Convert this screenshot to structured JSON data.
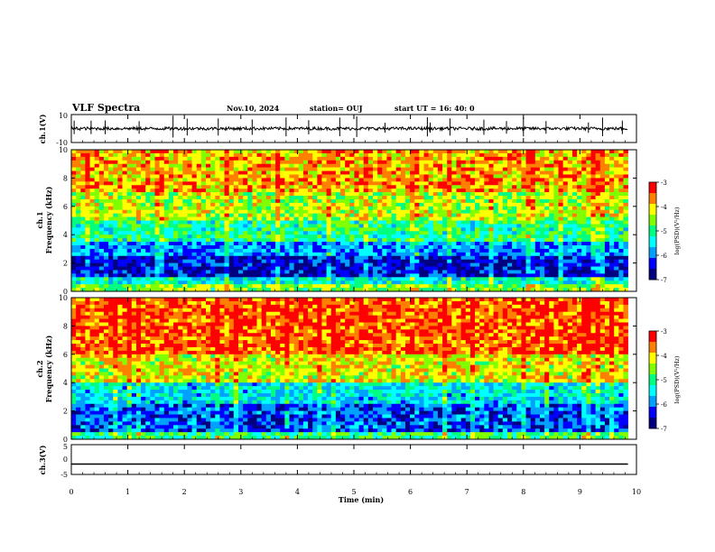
{
  "header": {
    "title": "VLF Spectra",
    "date": "Nov.10, 2024",
    "station": "station= OUJ",
    "start_ut": "start  UT =   16: 40: 0"
  },
  "chart_data": [
    {
      "type": "line",
      "panel": "ch1_waveform",
      "ylabel": "ch.1(V)",
      "ylim": [
        -10,
        10
      ],
      "yticks": [
        "10",
        "-10"
      ],
      "baseline": 0,
      "spikes_at_min": [
        0.05,
        0.35,
        0.6,
        1.2,
        1.8,
        2.05,
        2.6,
        3.2,
        3.8,
        4.2,
        4.75,
        5.05,
        5.55,
        6.3,
        6.35,
        6.7,
        7.3,
        7.7,
        8.0,
        8.4,
        9.15,
        9.4,
        9.75
      ]
    },
    {
      "type": "heatmap",
      "panel": "ch1_spectrogram",
      "ylabel": "ch.1\nFrequency (kHz)",
      "ylim": [
        0,
        10
      ],
      "yticks": [
        "0",
        "2",
        "4",
        "6",
        "8",
        "10"
      ],
      "xlim_min": [
        0,
        9.85
      ],
      "colorbar": {
        "label": "log(PSD)(V²/Hz)",
        "range": [
          -7,
          -3
        ],
        "ticks": [
          "-3",
          "-4",
          "-5",
          "-6",
          "-7"
        ]
      },
      "bands": [
        {
          "f_from": 0,
          "f_to": 0.4,
          "level": -4.6
        },
        {
          "f_from": 0.4,
          "f_to": 1.0,
          "level": -5.4
        },
        {
          "f_from": 1.0,
          "f_to": 2.4,
          "level": -6.5
        },
        {
          "f_from": 2.4,
          "f_to": 3.6,
          "level": -5.9
        },
        {
          "f_from": 3.6,
          "f_to": 5.0,
          "level": -5.1
        },
        {
          "f_from": 5.0,
          "f_to": 7.0,
          "level": -4.4
        },
        {
          "f_from": 7.0,
          "f_to": 10.0,
          "level": -3.9
        }
      ]
    },
    {
      "type": "heatmap",
      "panel": "ch2_spectrogram",
      "ylabel": "ch.2\nFrequency (kHz)",
      "ylim": [
        0,
        10
      ],
      "yticks": [
        "0",
        "2",
        "4",
        "6",
        "8",
        "10"
      ],
      "xlim_min": [
        0,
        9.85
      ],
      "colorbar": {
        "label": "log(PSD)(V²/Hz)",
        "range": [
          -7,
          -3
        ],
        "ticks": [
          "-3",
          "-4",
          "-5",
          "-6",
          "-7"
        ]
      },
      "bands": [
        {
          "f_from": 0,
          "f_to": 0.6,
          "level": -5.0
        },
        {
          "f_from": 0.6,
          "f_to": 2.6,
          "level": -6.2
        },
        {
          "f_from": 2.6,
          "f_to": 4.0,
          "level": -5.5
        },
        {
          "f_from": 4.0,
          "f_to": 6.0,
          "level": -4.2
        },
        {
          "f_from": 6.0,
          "f_to": 10.0,
          "level": -3.5
        }
      ]
    },
    {
      "type": "line",
      "panel": "ch3_waveform",
      "ylabel": "ch.3(V)",
      "ylim": [
        -5,
        5
      ],
      "yticks": [
        "5",
        "0",
        "-5"
      ],
      "values_constant": -1.5
    }
  ],
  "x_axis": {
    "label": "Time  (min)",
    "xlim": [
      0,
      10
    ],
    "ticks": [
      "0",
      "1",
      "2",
      "3",
      "4",
      "5",
      "6",
      "7",
      "8",
      "9",
      "10"
    ]
  },
  "colormap": [
    "#000080",
    "#0000ff",
    "#00a0ff",
    "#00ffff",
    "#00ff80",
    "#80ff00",
    "#ffff00",
    "#ff8000",
    "#ff0000"
  ]
}
